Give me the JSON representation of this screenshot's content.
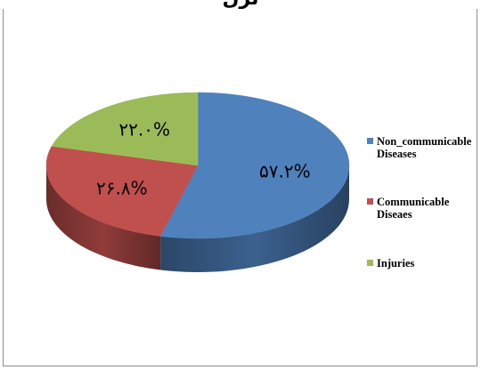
{
  "chart_data": {
    "type": "pie",
    "title": "",
    "title_fragment": "نزل",
    "slices": [
      {
        "name": "Non_communicable Diseases",
        "legend_lines": [
          "Non_communicable",
          "Diseases"
        ],
        "value": 57.2,
        "label": "۵۷.۲%",
        "color": "#4f81bd"
      },
      {
        "name": "Communicable Diseaes",
        "legend_lines": [
          "Communicable",
          "Diseaes"
        ],
        "value": 26.8,
        "label": "۲۶.۸%",
        "color": "#c0504d"
      },
      {
        "name": "Injuries",
        "legend_lines": [
          "Injuries"
        ],
        "value": 22.0,
        "label": "۲۲.۰%",
        "color": "#9bbb59"
      }
    ],
    "legend_position": "right",
    "style": "3d-pie"
  }
}
